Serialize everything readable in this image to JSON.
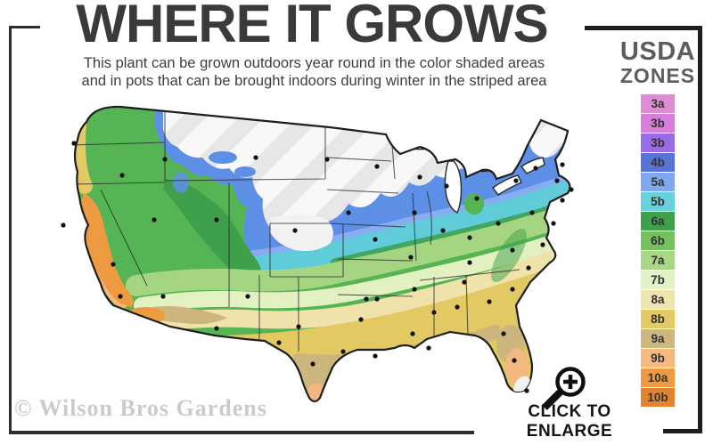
{
  "header": {
    "title": "WHERE IT GROWS",
    "subtitle_line1": "This plant can be grown outdoors year round in the color shaded areas",
    "subtitle_line2": "and in pots that can be brought indoors during winter in the striped area"
  },
  "legend": {
    "title_line1": "USDA",
    "title_line2": "ZONES",
    "zones": [
      {
        "label": "3a",
        "color": "#DD8ED2"
      },
      {
        "label": "3b",
        "color": "#D77EDB"
      },
      {
        "label": "3b",
        "color": "#9A6BE4"
      },
      {
        "label": "4b",
        "color": "#5A72D8"
      },
      {
        "label": "5a",
        "color": "#80A9ED"
      },
      {
        "label": "5b",
        "color": "#67D1DC"
      },
      {
        "label": "6a",
        "color": "#3FA04B"
      },
      {
        "label": "6b",
        "color": "#75C15D"
      },
      {
        "label": "7a",
        "color": "#AAD787"
      },
      {
        "label": "7b",
        "color": "#E3F1C6"
      },
      {
        "label": "8a",
        "color": "#F0E4AF"
      },
      {
        "label": "8b",
        "color": "#E3CA63"
      },
      {
        "label": "9a",
        "color": "#CDB87F"
      },
      {
        "label": "9b",
        "color": "#F4BA80"
      },
      {
        "label": "10a",
        "color": "#EF9A40"
      },
      {
        "label": "10b",
        "color": "#E08434"
      }
    ]
  },
  "map": {
    "colors": {
      "outline": "#1e1e1e",
      "state_line": "#2a2a2a",
      "water": "#ffffff",
      "striped_bg": "#f8f8f8",
      "stripe": "#e7e7e7",
      "white_patch": "#f2f2f2",
      "blue": "#5E8FE6",
      "blue_light": "#87ADF0",
      "cyan": "#60CBD9",
      "green_dark": "#3EA04A",
      "green": "#55B453",
      "green_light": "#A6D581",
      "green_pale": "#E2F0C2",
      "cream": "#EFE3AB",
      "gold": "#E3C963",
      "tan": "#CCB67D",
      "peach": "#F3B87E",
      "orange": "#EE9A41",
      "dot": "#111111"
    },
    "city_dots": [
      [
        48,
        56
      ],
      [
        102,
        92
      ],
      [
        150,
        74
      ],
      [
        252,
        72
      ],
      [
        332,
        74
      ],
      [
        388,
        82
      ],
      [
        436,
        94
      ],
      [
        466,
        104
      ],
      [
        500,
        118
      ],
      [
        544,
        98
      ],
      [
        566,
        84
      ],
      [
        596,
        80
      ],
      [
        590,
        98
      ],
      [
        606,
        108
      ],
      [
        596,
        120
      ],
      [
        138,
        142
      ],
      [
        208,
        142
      ],
      [
        296,
        154
      ],
      [
        356,
        134
      ],
      [
        430,
        134
      ],
      [
        462,
        154
      ],
      [
        492,
        162
      ],
      [
        524,
        146
      ],
      [
        562,
        134
      ],
      [
        586,
        146
      ],
      [
        36,
        148
      ],
      [
        92,
        192
      ],
      [
        100,
        228
      ],
      [
        386,
        164
      ],
      [
        426,
        184
      ],
      [
        492,
        190
      ],
      [
        540,
        176
      ],
      [
        574,
        170
      ],
      [
        148,
        228
      ],
      [
        208,
        264
      ],
      [
        243,
        228
      ],
      [
        300,
        262
      ],
      [
        376,
        231
      ],
      [
        388,
        231
      ],
      [
        430,
        220
      ],
      [
        486,
        212
      ],
      [
        558,
        196
      ],
      [
        540,
        220
      ],
      [
        514,
        234
      ],
      [
        478,
        240
      ],
      [
        452,
        246
      ],
      [
        370,
        254
      ],
      [
        350,
        290
      ],
      [
        386,
        295
      ],
      [
        428,
        270
      ],
      [
        446,
        286
      ],
      [
        530,
        270
      ],
      [
        542,
        300
      ],
      [
        556,
        334
      ],
      [
        278,
        280
      ],
      [
        316,
        304
      ]
    ]
  },
  "footer": {
    "watermark": "© Wilson Bros Gardens",
    "enlarge_label": "CLICK TO ENLARGE",
    "magnifier_icon": "magnifying-glass-plus-icon"
  }
}
